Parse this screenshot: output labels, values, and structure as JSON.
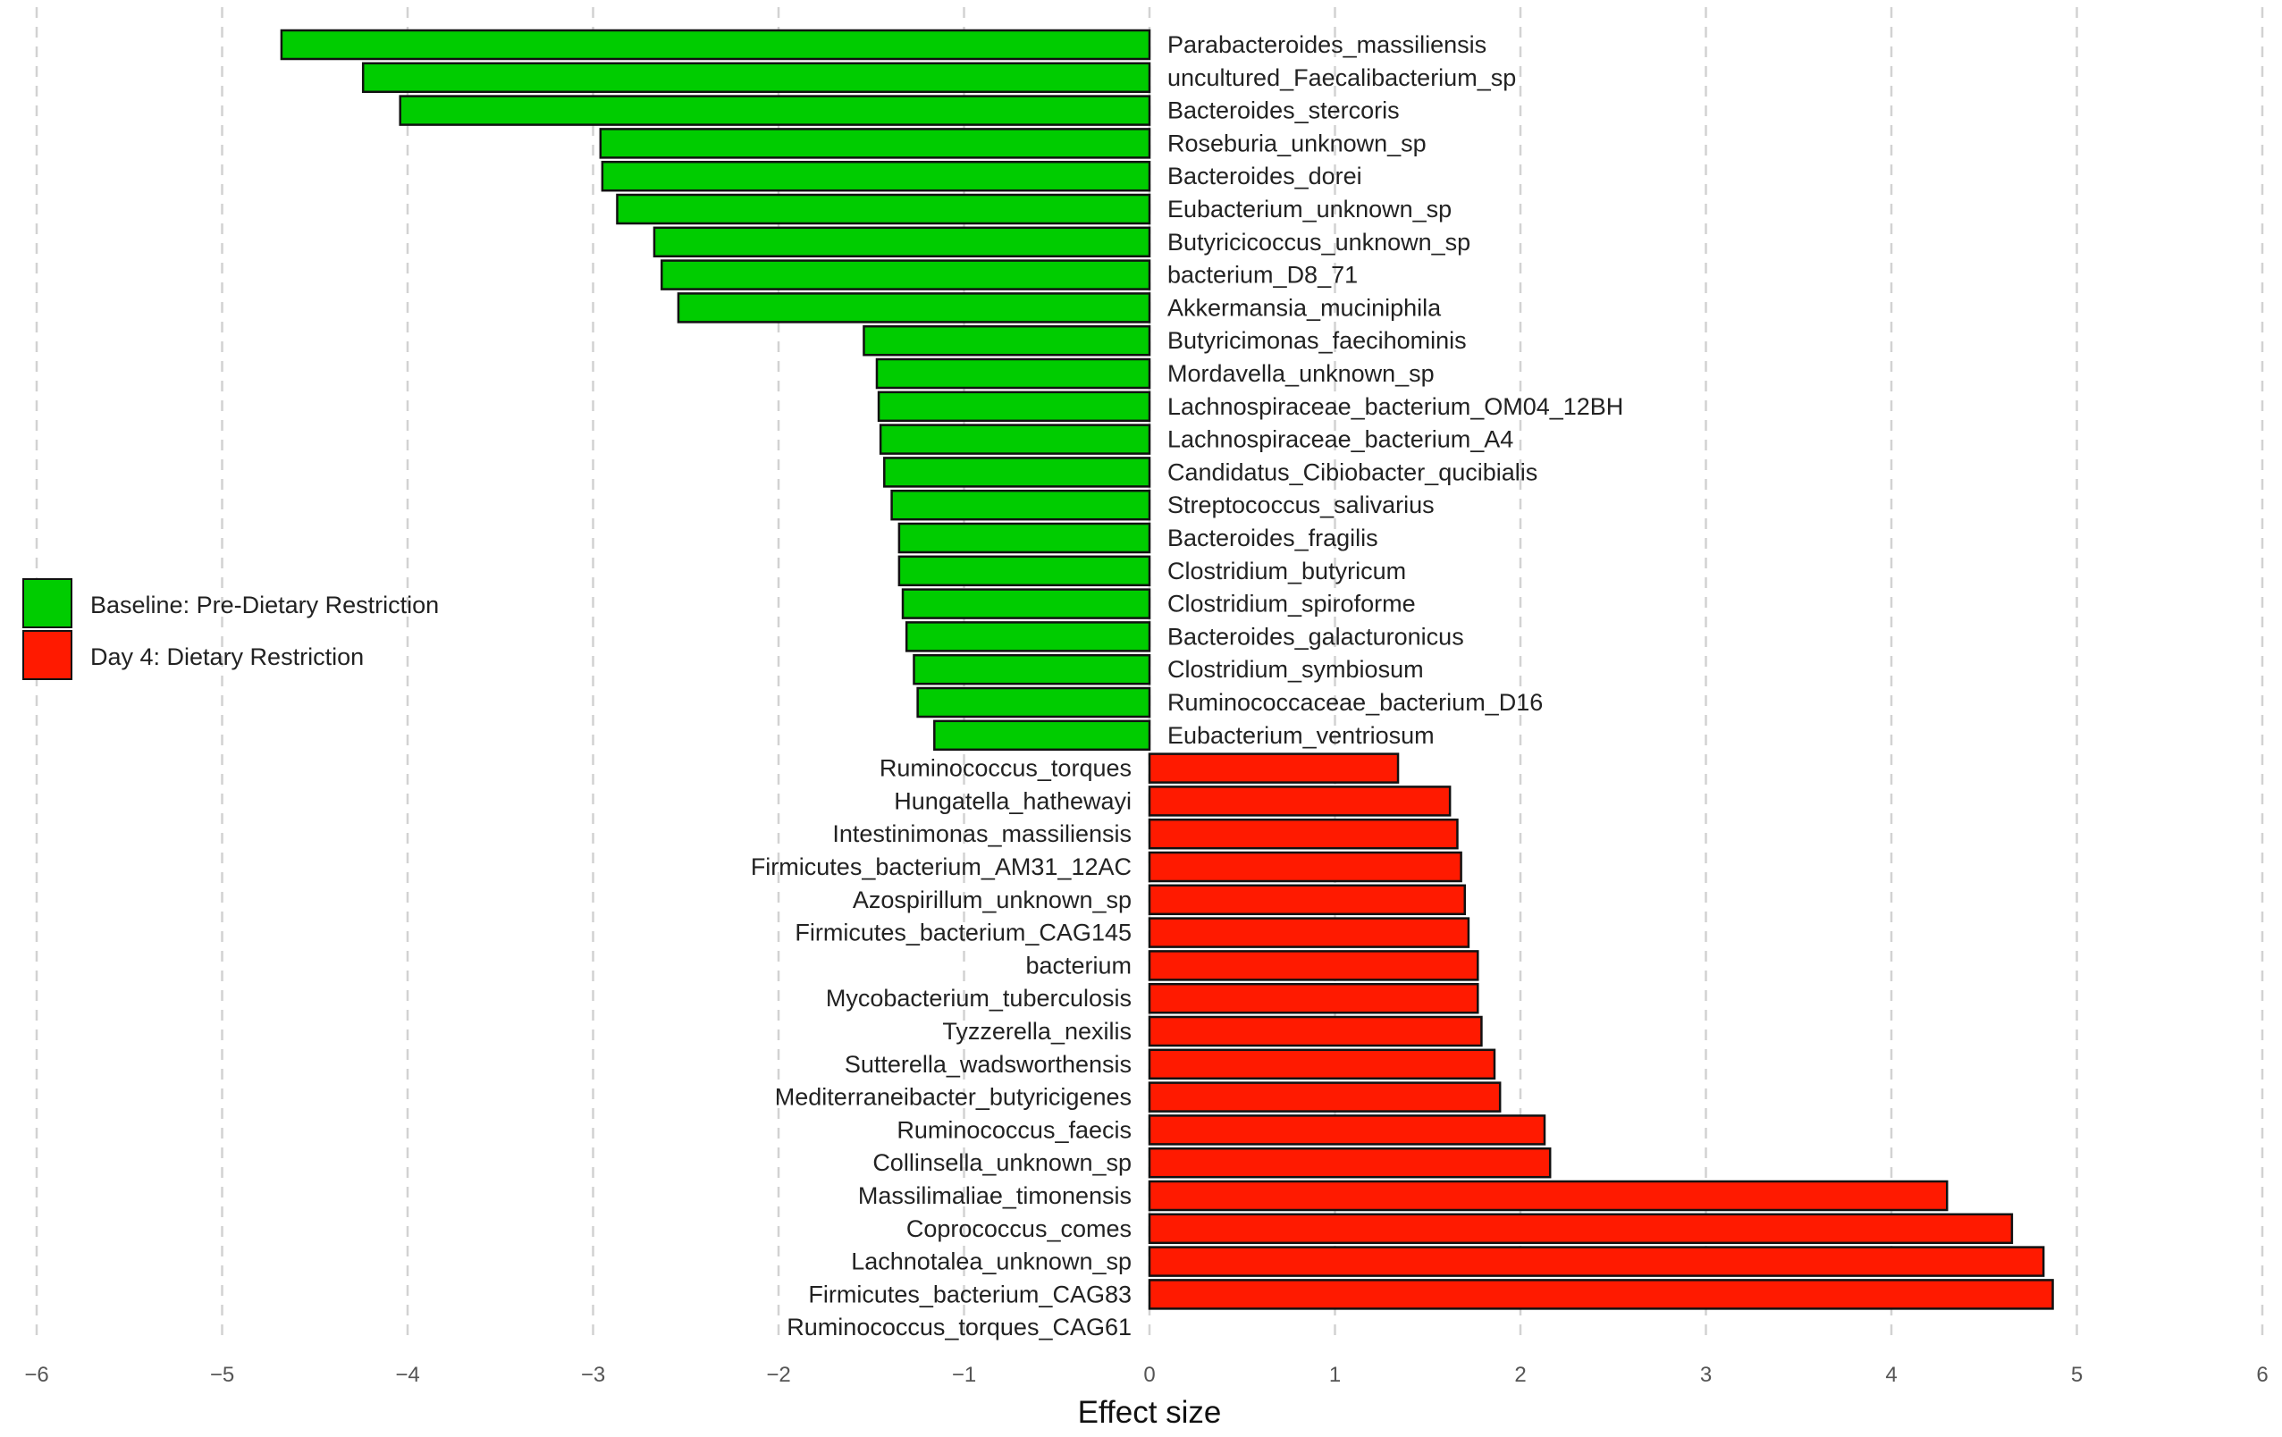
{
  "chart_data": {
    "type": "bar",
    "orientation": "horizontal",
    "title": "",
    "xlabel": "Effect size",
    "ylabel": "",
    "xlim": [
      -6,
      6
    ],
    "xticks": [
      "−6",
      "−5",
      "−4",
      "−3",
      "−2",
      "−1",
      "0",
      "1",
      "2",
      "3",
      "4",
      "5",
      "6"
    ],
    "grid": "vertical dashed",
    "legend_position": "left-middle",
    "series": [
      {
        "name": "Baseline: Pre-Dietary Restriction",
        "color": "#00cc00"
      },
      {
        "name": "Day 4: Dietary Restriction",
        "color": "#ff1a00"
      }
    ],
    "categories": [
      "Parabacteroides_massiliensis",
      "uncultured_Faecalibacterium_sp",
      "Bacteroides_stercoris",
      "Roseburia_unknown_sp",
      "Bacteroides_dorei",
      "Eubacterium_unknown_sp",
      "Butyricicoccus_unknown_sp",
      "bacterium_D8_71",
      "Akkermansia_muciniphila",
      "Butyricimonas_faecihominis",
      "Mordavella_unknown_sp",
      "Lachnospiraceae_bacterium_OM04_12BH",
      "Lachnospiraceae_bacterium_A4",
      "Candidatus_Cibiobacter_qucibialis",
      "Streptococcus_salivarius",
      "Bacteroides_fragilis",
      "Clostridium_butyricum",
      "Clostridium_spiroforme",
      "Bacteroides_galacturonicus",
      "Clostridium_symbiosum",
      "Ruminococcaceae_bacterium_D16",
      "Eubacterium_ventriosum",
      "Ruminococcus_torques",
      "Hungatella_hathewayi",
      "Intestinimonas_massiliensis",
      "Firmicutes_bacterium_AM31_12AC",
      "Azospirillum_unknown_sp",
      "Firmicutes_bacterium_CAG145",
      "bacterium",
      "Mycobacterium_tuberculosis",
      "Tyzzerella_nexilis",
      "Sutterella_wadsworthensis",
      "Mediterraneibacter_butyricigenes",
      "Ruminococcus_faecis",
      "Collinsella_unknown_sp",
      "Massilimaliae_timonensis",
      "Coprococcus_comes",
      "Lachnotalea_unknown_sp",
      "Firmicutes_bacterium_CAG83",
      "Ruminococcus_torques_CAG61"
    ],
    "values": [
      -4.68,
      -4.24,
      -4.04,
      -2.96,
      -2.95,
      -2.87,
      -2.67,
      -2.63,
      -2.54,
      -1.54,
      -1.47,
      -1.46,
      -1.45,
      -1.43,
      -1.39,
      -1.35,
      -1.35,
      -1.33,
      -1.31,
      -1.27,
      -1.25,
      -1.16,
      1.34,
      1.62,
      1.66,
      1.68,
      1.7,
      1.72,
      1.77,
      1.77,
      1.79,
      1.86,
      1.89,
      2.13,
      2.16,
      4.3,
      4.65,
      4.82,
      4.87,
      null
    ],
    "group": [
      0,
      0,
      0,
      0,
      0,
      0,
      0,
      0,
      0,
      0,
      0,
      0,
      0,
      0,
      0,
      0,
      0,
      0,
      0,
      0,
      0,
      0,
      1,
      1,
      1,
      1,
      1,
      1,
      1,
      1,
      1,
      1,
      1,
      1,
      1,
      1,
      1,
      1,
      1,
      1
    ]
  }
}
